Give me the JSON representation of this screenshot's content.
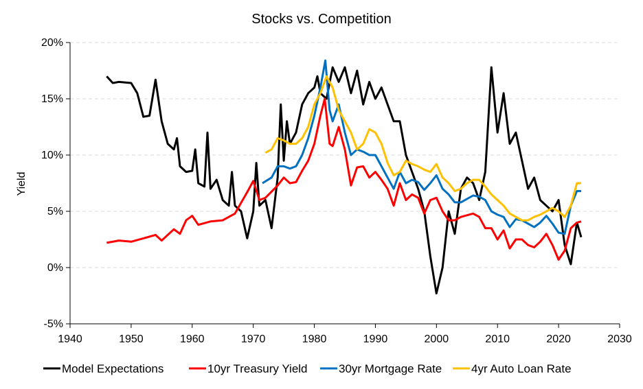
{
  "chart_data": {
    "type": "line",
    "title": "Stocks vs. Competition",
    "xlabel": "",
    "ylabel": "Yield",
    "xlim": [
      1940,
      2030
    ],
    "ylim": [
      -5,
      20
    ],
    "x_ticks": [
      1940,
      1950,
      1960,
      1970,
      1980,
      1990,
      2000,
      2010,
      2020,
      2030
    ],
    "x_tick_labels": [
      "1940",
      "1950",
      "1960",
      "1970",
      "1980",
      "1990",
      "2000",
      "2010",
      "2020",
      "2030"
    ],
    "y_ticks": [
      20,
      15,
      10,
      5,
      0,
      -5
    ],
    "y_tick_labels": [
      "20%",
      "15%",
      "10%",
      "5%",
      "0%",
      "-5%"
    ],
    "grid": "horizontal dashed",
    "legend_position": "bottom",
    "series": [
      {
        "name": "Model Expectations",
        "color": "#000000",
        "points": [
          [
            1946,
            17
          ],
          [
            1947,
            16.4
          ],
          [
            1948,
            16.5
          ],
          [
            1950,
            16.4
          ],
          [
            1951,
            15.5
          ],
          [
            1952,
            13.4
          ],
          [
            1953,
            13.5
          ],
          [
            1954,
            16.7
          ],
          [
            1955,
            13
          ],
          [
            1956,
            11
          ],
          [
            1957,
            10.5
          ],
          [
            1957.5,
            11.5
          ],
          [
            1958,
            9
          ],
          [
            1959,
            8.5
          ],
          [
            1960,
            8.6
          ],
          [
            1960.5,
            10.5
          ],
          [
            1961,
            7.5
          ],
          [
            1962,
            7.2
          ],
          [
            1962.5,
            12
          ],
          [
            1963,
            7
          ],
          [
            1964,
            7.8
          ],
          [
            1965,
            6
          ],
          [
            1966,
            5.5
          ],
          [
            1966.5,
            8.5
          ],
          [
            1967,
            5.5
          ],
          [
            1968,
            5
          ],
          [
            1969,
            2.6
          ],
          [
            1970,
            5
          ],
          [
            1970.5,
            9.3
          ],
          [
            1971,
            5.5
          ],
          [
            1972,
            6
          ],
          [
            1973,
            3.5
          ],
          [
            1974,
            8
          ],
          [
            1974.5,
            14.5
          ],
          [
            1975,
            9.5
          ],
          [
            1975.5,
            13
          ],
          [
            1976,
            11
          ],
          [
            1977,
            12
          ],
          [
            1978,
            14.5
          ],
          [
            1979,
            15.5
          ],
          [
            1980,
            16
          ],
          [
            1980.5,
            17
          ],
          [
            1981,
            15.5
          ],
          [
            1982,
            15
          ],
          [
            1983,
            17.8
          ],
          [
            1984,
            16.5
          ],
          [
            1985,
            17.8
          ],
          [
            1986,
            15.5
          ],
          [
            1987,
            17.5
          ],
          [
            1988,
            14.5
          ],
          [
            1989,
            16.5
          ],
          [
            1990,
            15
          ],
          [
            1991,
            16
          ],
          [
            1992,
            14.5
          ],
          [
            1993,
            13
          ],
          [
            1994,
            13
          ],
          [
            1995,
            10
          ],
          [
            1996,
            8.5
          ],
          [
            1997,
            7
          ],
          [
            1998,
            5
          ],
          [
            1999,
            1
          ],
          [
            2000,
            -2.3
          ],
          [
            2001,
            0
          ],
          [
            2002,
            5
          ],
          [
            2003,
            3
          ],
          [
            2004,
            7
          ],
          [
            2005,
            8
          ],
          [
            2006,
            7.5
          ],
          [
            2007,
            6
          ],
          [
            2008,
            8.5
          ],
          [
            2009,
            17.8
          ],
          [
            2010,
            12
          ],
          [
            2011,
            15.5
          ],
          [
            2012,
            11
          ],
          [
            2013,
            12
          ],
          [
            2014,
            9.5
          ],
          [
            2015,
            7
          ],
          [
            2016,
            8
          ],
          [
            2017,
            6
          ],
          [
            2018,
            5.5
          ],
          [
            2019,
            5
          ],
          [
            2020,
            6
          ],
          [
            2021,
            2
          ],
          [
            2022,
            0.3
          ],
          [
            2023,
            4
          ],
          [
            2023.7,
            2.7
          ]
        ]
      },
      {
        "name": "10yr Treasury Yield",
        "color": "#ff0000",
        "points": [
          [
            1946,
            2.2
          ],
          [
            1948,
            2.4
          ],
          [
            1950,
            2.3
          ],
          [
            1952,
            2.6
          ],
          [
            1954,
            2.9
          ],
          [
            1955,
            2.4
          ],
          [
            1957,
            3.4
          ],
          [
            1958,
            3
          ],
          [
            1959,
            4.2
          ],
          [
            1960,
            4.6
          ],
          [
            1961,
            3.8
          ],
          [
            1963,
            4.1
          ],
          [
            1965,
            4.2
          ],
          [
            1967,
            4.8
          ],
          [
            1969,
            6.7
          ],
          [
            1970,
            7.7
          ],
          [
            1971,
            6
          ],
          [
            1972,
            6.2
          ],
          [
            1974,
            7.3
          ],
          [
            1975,
            8
          ],
          [
            1976,
            7.5
          ],
          [
            1977,
            7.6
          ],
          [
            1978,
            8.6
          ],
          [
            1979,
            9.5
          ],
          [
            1980,
            11
          ],
          [
            1981,
            13.5
          ],
          [
            1981.7,
            15
          ],
          [
            1982.5,
            11
          ],
          [
            1983,
            10.8
          ],
          [
            1984,
            12.5
          ],
          [
            1985,
            10.5
          ],
          [
            1986,
            7.3
          ],
          [
            1987,
            8.9
          ],
          [
            1988,
            9
          ],
          [
            1989,
            8
          ],
          [
            1990,
            8.5
          ],
          [
            1991,
            7.8
          ],
          [
            1992,
            7
          ],
          [
            1993,
            5.5
          ],
          [
            1994,
            7.5
          ],
          [
            1995,
            6
          ],
          [
            1996,
            6.5
          ],
          [
            1997,
            6.2
          ],
          [
            1998,
            4.8
          ],
          [
            1999,
            6
          ],
          [
            2000,
            6.2
          ],
          [
            2001,
            5
          ],
          [
            2002,
            4.2
          ],
          [
            2003,
            4.2
          ],
          [
            2004,
            4.5
          ],
          [
            2006,
            4.8
          ],
          [
            2007,
            4.5
          ],
          [
            2008,
            3.5
          ],
          [
            2009,
            3.5
          ],
          [
            2010,
            2.5
          ],
          [
            2011,
            3.3
          ],
          [
            2012,
            1.7
          ],
          [
            2013,
            2.5
          ],
          [
            2014,
            2.5
          ],
          [
            2015,
            2
          ],
          [
            2016,
            1.8
          ],
          [
            2017,
            2.3
          ],
          [
            2018,
            3
          ],
          [
            2019,
            2
          ],
          [
            2020,
            0.7
          ],
          [
            2021,
            1.5
          ],
          [
            2022,
            3.5
          ],
          [
            2023,
            4
          ],
          [
            2023.7,
            4.1
          ]
        ]
      },
      {
        "name": "30yr Mortgage Rate",
        "color": "#0070c0",
        "points": [
          [
            1971.5,
            7.5
          ],
          [
            1973,
            8
          ],
          [
            1974,
            9
          ],
          [
            1975,
            9
          ],
          [
            1976,
            8.8
          ],
          [
            1977,
            9
          ],
          [
            1978,
            10
          ],
          [
            1979,
            11.5
          ],
          [
            1980,
            13.5
          ],
          [
            1981,
            16
          ],
          [
            1981.8,
            18.4
          ],
          [
            1982.5,
            14
          ],
          [
            1983,
            13
          ],
          [
            1984,
            14.5
          ],
          [
            1985,
            12
          ],
          [
            1986,
            10
          ],
          [
            1987,
            10.5
          ],
          [
            1988,
            10.3
          ],
          [
            1989,
            10
          ],
          [
            1990,
            10
          ],
          [
            1991,
            9
          ],
          [
            1992,
            8
          ],
          [
            1993,
            7
          ],
          [
            1994,
            8.5
          ],
          [
            1995,
            7.5
          ],
          [
            1996,
            7.8
          ],
          [
            1997,
            7.6
          ],
          [
            1998,
            6.9
          ],
          [
            1999,
            7.5
          ],
          [
            2000,
            8.2
          ],
          [
            2001,
            7
          ],
          [
            2002,
            6.5
          ],
          [
            2003,
            5.8
          ],
          [
            2004,
            5.8
          ],
          [
            2006,
            6.4
          ],
          [
            2007,
            6.3
          ],
          [
            2008,
            6
          ],
          [
            2009,
            5
          ],
          [
            2010,
            4.7
          ],
          [
            2011,
            4.5
          ],
          [
            2012,
            3.6
          ],
          [
            2013,
            4.3
          ],
          [
            2014,
            4.2
          ],
          [
            2015,
            3.9
          ],
          [
            2016,
            3.6
          ],
          [
            2017,
            4
          ],
          [
            2018,
            4.6
          ],
          [
            2019,
            3.9
          ],
          [
            2020,
            3.1
          ],
          [
            2021,
            3
          ],
          [
            2022,
            5.5
          ],
          [
            2023,
            6.8
          ],
          [
            2023.7,
            6.8
          ]
        ]
      },
      {
        "name": "4yr Auto Loan Rate",
        "color": "#ffc000",
        "points": [
          [
            1972,
            10.2
          ],
          [
            1973,
            10.5
          ],
          [
            1974,
            11.5
          ],
          [
            1975,
            11.3
          ],
          [
            1976,
            11
          ],
          [
            1977,
            11
          ],
          [
            1978,
            11.5
          ],
          [
            1979,
            12.5
          ],
          [
            1980,
            14.5
          ],
          [
            1981,
            15.5
          ],
          [
            1982,
            17
          ],
          [
            1983,
            16
          ],
          [
            1984,
            14
          ],
          [
            1985,
            13
          ],
          [
            1986,
            12
          ],
          [
            1987,
            10.5
          ],
          [
            1988,
            11
          ],
          [
            1989,
            12.3
          ],
          [
            1990,
            12
          ],
          [
            1991,
            11
          ],
          [
            1992,
            9.3
          ],
          [
            1993,
            8.2
          ],
          [
            1994,
            8.5
          ],
          [
            1995,
            9.5
          ],
          [
            1996,
            9.2
          ],
          [
            1997,
            9
          ],
          [
            1998,
            8.7
          ],
          [
            1999,
            8.5
          ],
          [
            2000,
            9.2
          ],
          [
            2001,
            8
          ],
          [
            2002,
            7.5
          ],
          [
            2003,
            6.8
          ],
          [
            2004,
            7
          ],
          [
            2005,
            7.5
          ],
          [
            2006,
            7.8
          ],
          [
            2007,
            7.8
          ],
          [
            2008,
            7.2
          ],
          [
            2009,
            6.5
          ],
          [
            2010,
            6
          ],
          [
            2011,
            5.5
          ],
          [
            2012,
            4.8
          ],
          [
            2013,
            4.5
          ],
          [
            2014,
            4.2
          ],
          [
            2015,
            4.2
          ],
          [
            2016,
            4.5
          ],
          [
            2017,
            4.7
          ],
          [
            2018,
            5
          ],
          [
            2019,
            5.3
          ],
          [
            2020,
            5
          ],
          [
            2021,
            4.5
          ],
          [
            2022,
            5.5
          ],
          [
            2023,
            7.5
          ],
          [
            2023.7,
            7.5
          ]
        ]
      }
    ]
  }
}
